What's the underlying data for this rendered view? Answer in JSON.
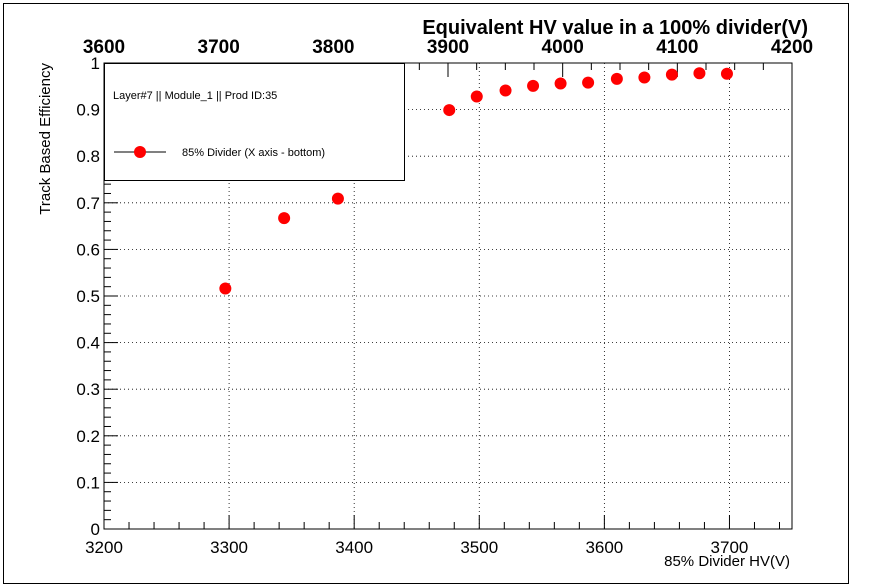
{
  "chart_data": {
    "type": "scatter",
    "title": "",
    "xlabel": "85% Divider HV(V)",
    "ylabel": "Track Based Efficiency",
    "x2label": "Equivalent HV value in a 100% divider(V)",
    "xlim": [
      3200,
      3750
    ],
    "ylim": [
      0,
      1
    ],
    "x2lim": [
      3600,
      4200
    ],
    "x_ticks": [
      "3200",
      "3300",
      "3400",
      "3500",
      "3600",
      "3700"
    ],
    "x2_ticks": [
      "3600",
      "3700",
      "3800",
      "3900",
      "4000",
      "4100",
      "4200"
    ],
    "y_ticks": [
      "0",
      "0.1",
      "0.2",
      "0.3",
      "0.4",
      "0.5",
      "0.6",
      "0.7",
      "0.8",
      "0.9",
      "1"
    ],
    "grid": true,
    "legend": {
      "header": "Layer#7 || Module_1 || Prod ID:35",
      "placement": "top-left",
      "entries": [
        "85% Divider (X axis - bottom)"
      ]
    },
    "series": [
      {
        "name": "85% Divider (X axis - bottom)",
        "color": "#ff0000",
        "x": [
          3297,
          3344,
          3387,
          3476,
          3498,
          3521,
          3543,
          3565,
          3587,
          3610,
          3632,
          3654,
          3676,
          3698
        ],
        "y": [
          0.516,
          0.667,
          0.709,
          0.899,
          0.928,
          0.941,
          0.951,
          0.956,
          0.958,
          0.966,
          0.969,
          0.975,
          0.978,
          0.977
        ]
      }
    ]
  }
}
